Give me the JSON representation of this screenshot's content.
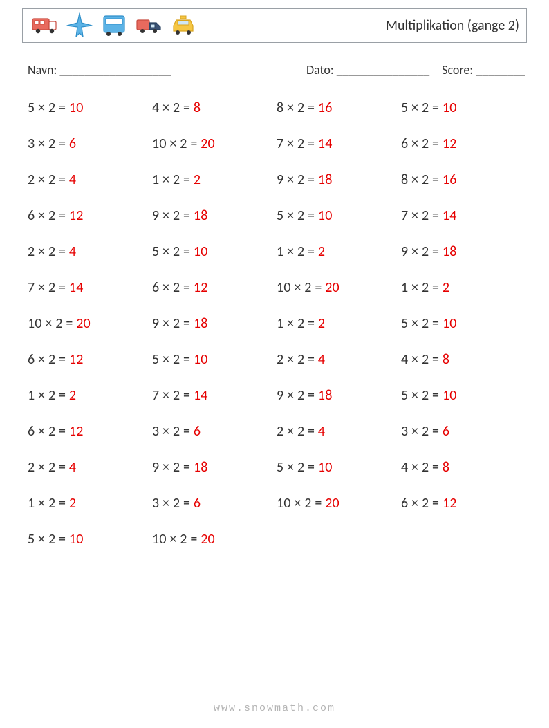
{
  "header": {
    "title": "Multiplikation (gange 2)",
    "icon_colors": {
      "red_fill": "#e86a5e",
      "red_stroke": "#c84b3f",
      "blue_fill": "#5cb3e6",
      "blue_stroke": "#2f8fc9",
      "yellow_fill": "#f6c744",
      "yellow_stroke": "#d9a520",
      "dark": "#3b5375",
      "wheel": "#333333",
      "white": "#ffffff"
    }
  },
  "meta": {
    "name_label": "Navn: __________________",
    "date_label": "Dato: _______________",
    "score_label": "Score: ________"
  },
  "multiplier": 2,
  "operator": "×",
  "equals": "=",
  "columns_first_operand": [
    [
      5,
      3,
      2,
      6,
      2,
      7,
      10,
      6,
      1,
      6,
      2,
      1,
      5
    ],
    [
      4,
      10,
      1,
      9,
      5,
      6,
      9,
      5,
      7,
      3,
      9,
      3,
      10
    ],
    [
      8,
      7,
      9,
      5,
      1,
      10,
      1,
      2,
      9,
      2,
      5,
      10
    ],
    [
      5,
      6,
      8,
      7,
      9,
      1,
      5,
      4,
      5,
      3,
      4,
      6
    ]
  ],
  "answer_color": "#e60000",
  "text_color": "#333333",
  "font_size_pt": 15,
  "footer": "www.snowmath.com"
}
